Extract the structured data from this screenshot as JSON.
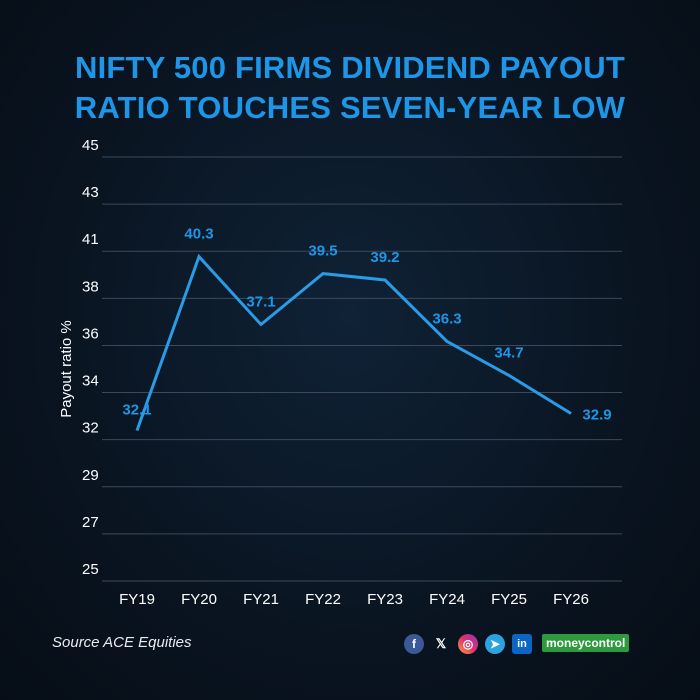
{
  "title_line1": "NIFTY 500 FIRMS DIVIDEND PAYOUT",
  "title_line2": "RATIO TOUCHES SEVEN-YEAR LOW",
  "source": "Source ACE Equities",
  "brand": "moneycontrol",
  "social_icons": [
    "facebook-icon",
    "x-icon",
    "instagram-icon",
    "telegram-icon",
    "linkedin-icon"
  ],
  "colors": {
    "accent": "#1e96e8",
    "line": "#2a9be6",
    "background": "#0a1522",
    "brand_green": "#2e9a3e"
  },
  "chart_data": {
    "type": "line",
    "title": "NIFTY 500 FIRMS DIVIDEND PAYOUT RATIO TOUCHES SEVEN-YEAR LOW",
    "xlabel": "",
    "ylabel": "Payout ratio %",
    "categories": [
      "FY19",
      "FY20",
      "FY21",
      "FY22",
      "FY23",
      "FY24",
      "FY25",
      "FY26"
    ],
    "series": [
      {
        "values": [
          32.1,
          40.3,
          37.1,
          39.5,
          39.2,
          36.3,
          34.7,
          32.9
        ]
      }
    ],
    "data_labels": [
      "32.1",
      "40.3",
      "37.1",
      "39.5",
      "39.2",
      "36.3",
      "34.7",
      "32.9"
    ],
    "ylim": [
      25,
      45
    ],
    "y_ticks": [
      25,
      27,
      29,
      32,
      34,
      36,
      38,
      41,
      43,
      45
    ],
    "grid": true,
    "legend": "none"
  }
}
